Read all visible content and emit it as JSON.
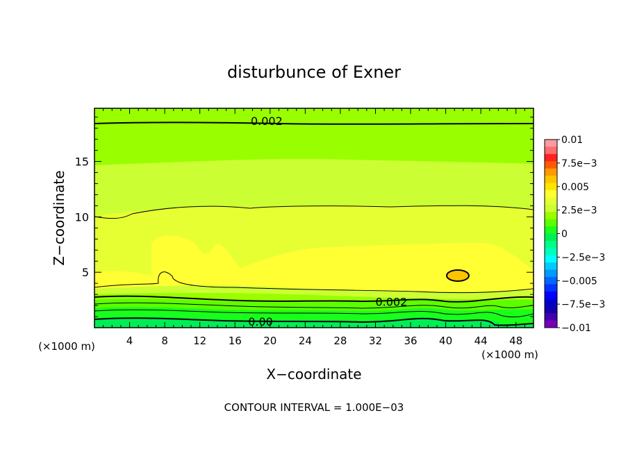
{
  "chart_data": {
    "type": "contour",
    "title": "disturbunce of Exner",
    "xlabel": "X−coordinate",
    "ylabel": "Z−coordinate",
    "x_unit": "(×1000 m)",
    "y_unit": "(×1000 m)",
    "xlim": [
      0,
      50
    ],
    "ylim": [
      0,
      19.8
    ],
    "x_ticks": [
      4,
      8,
      12,
      16,
      20,
      24,
      28,
      32,
      36,
      40,
      44,
      48
    ],
    "y_ticks": [
      5,
      10,
      15
    ],
    "x_tick_labels": [
      "4",
      "8",
      "12",
      "16",
      "20",
      "24",
      "28",
      "32",
      "36",
      "40",
      "44",
      "48"
    ],
    "y_tick_labels": [
      "5",
      "10",
      "15"
    ],
    "contour_interval_text": "CONTOUR INTERVAL = 1.000E−03",
    "colorbar": {
      "labels": [
        "0.01",
        "7.5e−3",
        "0.005",
        "2.5e−3",
        "0",
        "−2.5e−3",
        "−0.005",
        "−7.5e−3",
        "−0.01"
      ],
      "colors_top_to_bottom": [
        "#ff9aa2",
        "#ff6c6c",
        "#ff2020",
        "#ff5a00",
        "#ff9a00",
        "#ffc400",
        "#ffe400",
        "#ffff33",
        "#e6ff33",
        "#ccff33",
        "#99ff00",
        "#5cff00",
        "#1aff1a",
        "#00ee55",
        "#00ff88",
        "#00ffbb",
        "#00ffff",
        "#00ccff",
        "#0099ff",
        "#0066ff",
        "#0033ff",
        "#0000ff",
        "#0000cc",
        "#1100aa",
        "#4400aa",
        "#7700bb"
      ]
    },
    "contour_labels": [
      {
        "text": "0.002",
        "x": 17.8,
        "z": 18.6
      },
      {
        "text": "0.002",
        "x": 32.0,
        "z": 2.3
      },
      {
        "text": "0.00",
        "x": 17.5,
        "z": 0.5
      }
    ]
  }
}
